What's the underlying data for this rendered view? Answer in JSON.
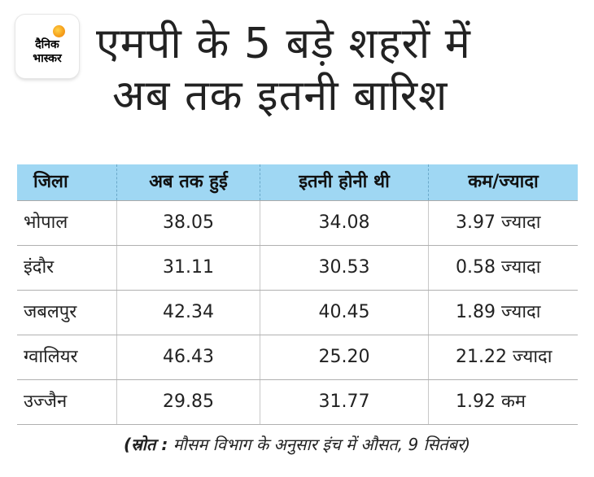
{
  "logo": {
    "line1": "दैनिक",
    "line2": "भास्कर"
  },
  "title": {
    "line1": "एमपी के 5 बड़े शहरों में",
    "line2": "अब तक इतनी बारिश"
  },
  "table": {
    "headers": [
      "जिला",
      "अब तक हुई",
      "इतनी होनी थी",
      "कम/ज्यादा"
    ],
    "rows": [
      [
        "भोपाल",
        "38.05",
        "34.08",
        "3.97 ज्यादा"
      ],
      [
        "इंदौर",
        "31.11",
        "30.53",
        "0.58 ज्यादा"
      ],
      [
        "जबलपुर",
        "42.34",
        "40.45",
        "1.89 ज्यादा"
      ],
      [
        "ग्वालियर",
        "46.43",
        "25.20",
        "21.22 ज्यादा"
      ],
      [
        "उज्जैन",
        "29.85",
        "31.77",
        "1.92 कम"
      ]
    ]
  },
  "source": {
    "label": "(स्रोत :",
    "text": "मौसम विभाग के अनुसार इंच में औसत, 9 सितंबर)"
  },
  "colors": {
    "header_bg": "#9fd7f3",
    "logo_sun": "#f6a21c"
  }
}
